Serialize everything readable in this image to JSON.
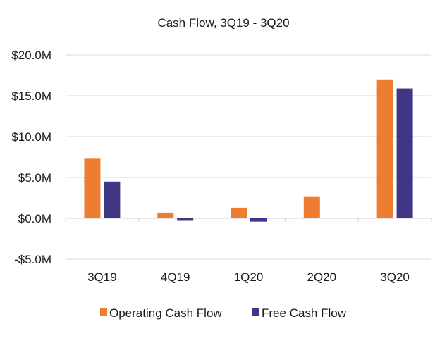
{
  "chart_data": {
    "type": "bar",
    "title": "Cash Flow, 3Q19 - 3Q20",
    "categories": [
      "3Q19",
      "4Q19",
      "1Q20",
      "2Q20",
      "3Q20"
    ],
    "series": [
      {
        "name": "Operating Cash Flow",
        "color": "#ED7D31",
        "values": [
          7.3,
          0.7,
          1.3,
          2.7,
          17.0
        ]
      },
      {
        "name": "Free Cash Flow",
        "color": "#3F3785",
        "values": [
          4.5,
          -0.3,
          -0.4,
          0.0,
          15.9
        ]
      }
    ],
    "yticks": [
      20,
      15,
      10,
      5,
      0,
      -5
    ],
    "ytick_labels": [
      "$20.0M",
      "$15.0M",
      "$10.0M",
      "$5.0M",
      "$0.0M",
      "-$5.0M"
    ],
    "ylim": [
      -5,
      20
    ],
    "xlabel": "",
    "ylabel": "",
    "grid": true,
    "legend_position": "bottom"
  }
}
